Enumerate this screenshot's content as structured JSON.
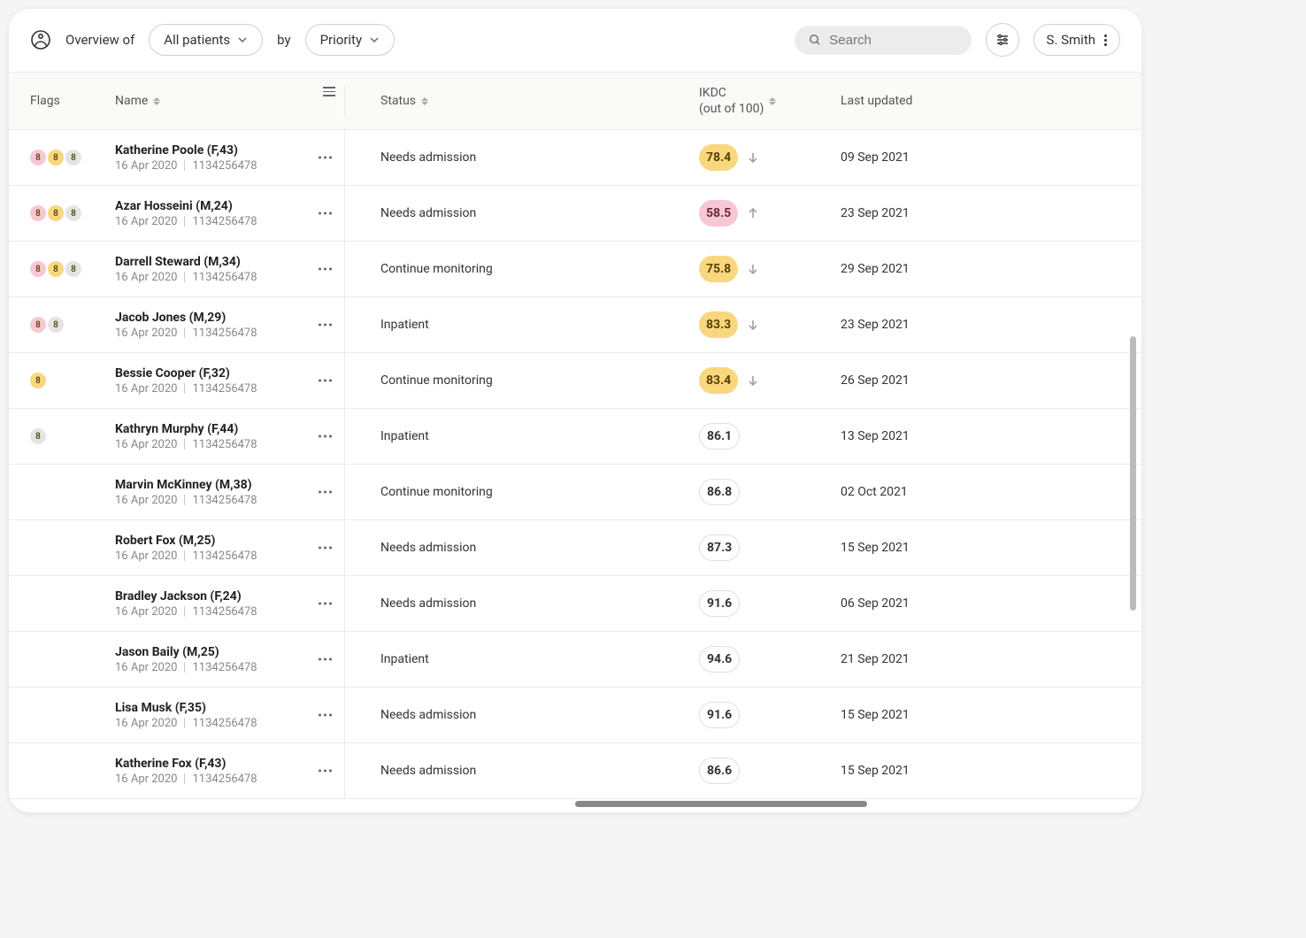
{
  "header": {
    "overview_label": "Overview of",
    "filter_patients": "All patients",
    "by_label": "by",
    "filter_sort": "Priority",
    "search_placeholder": "Search",
    "user_name": "S. Smith"
  },
  "columns": {
    "flags": "Flags",
    "name": "Name",
    "status": "Status",
    "ikdc_line1": "IKDC",
    "ikdc_line2": "(out of 100)",
    "updated": "Last updated"
  },
  "colors": {
    "flag_pink": "#f8c7d4",
    "flag_yellow": "#f9d77e",
    "flag_grey": "#e4e4e4",
    "ikdc_yellow_bg": "#f9d77e",
    "ikdc_pink_bg": "#f8c7d4",
    "ikdc_yellow_text": "#5a4200",
    "ikdc_pink_text": "#6a2a3a"
  },
  "rows": [
    {
      "flags": [
        "pink",
        "yellow",
        "grey"
      ],
      "name": "Katherine Poole (F,43)",
      "date": "16 Apr 2020",
      "id": "1134256478",
      "status": "Needs admission",
      "ikdc": "78.4",
      "ikdc_style": "yellow",
      "trend": "down",
      "updated": "09 Sep 2021"
    },
    {
      "flags": [
        "pink",
        "yellow",
        "grey"
      ],
      "name": "Azar Hosseini (M,24)",
      "date": "16 Apr 2020",
      "id": "1134256478",
      "status": "Needs admission",
      "ikdc": "58.5",
      "ikdc_style": "pink",
      "trend": "up",
      "updated": "23 Sep 2021"
    },
    {
      "flags": [
        "pink",
        "yellow",
        "grey"
      ],
      "name": "Darrell Steward (M,34)",
      "date": "16 Apr 2020",
      "id": "1134256478",
      "status": "Continue monitoring",
      "ikdc": "75.8",
      "ikdc_style": "yellow",
      "trend": "down",
      "updated": "29 Sep 2021"
    },
    {
      "flags": [
        "pink",
        "grey"
      ],
      "name": "Jacob Jones (M,29)",
      "date": "16 Apr 2020",
      "id": "1134256478",
      "status": "Inpatient",
      "ikdc": "83.3",
      "ikdc_style": "yellow",
      "trend": "down",
      "updated": "23 Sep 2021"
    },
    {
      "flags": [
        "yellow"
      ],
      "name": "Bessie Cooper (F,32)",
      "date": "16 Apr 2020",
      "id": "1134256478",
      "status": "Continue monitoring",
      "ikdc": "83.4",
      "ikdc_style": "yellow",
      "trend": "down",
      "updated": "26 Sep 2021"
    },
    {
      "flags": [
        "grey"
      ],
      "name": "Kathryn Murphy (F,44)",
      "date": "16 Apr 2020",
      "id": "1134256478",
      "status": "Inpatient",
      "ikdc": "86.1",
      "ikdc_style": "outline",
      "trend": "",
      "updated": "13 Sep 2021"
    },
    {
      "flags": [],
      "name": "Marvin McKinney (M,38)",
      "date": "16 Apr 2020",
      "id": "1134256478",
      "status": "Continue monitoring",
      "ikdc": "86.8",
      "ikdc_style": "outline",
      "trend": "",
      "updated": "02 Oct 2021"
    },
    {
      "flags": [],
      "name": "Robert Fox (M,25)",
      "date": "16 Apr 2020",
      "id": "1134256478",
      "status": "Needs admission",
      "ikdc": "87.3",
      "ikdc_style": "outline",
      "trend": "",
      "updated": "15 Sep 2021"
    },
    {
      "flags": [],
      "name": "Bradley Jackson (F,24)",
      "date": "16 Apr 2020",
      "id": "1134256478",
      "status": "Needs admission",
      "ikdc": "91.6",
      "ikdc_style": "outline",
      "trend": "",
      "updated": "06 Sep 2021"
    },
    {
      "flags": [],
      "name": "Jason Baily (M,25)",
      "date": "16 Apr 2020",
      "id": "1134256478",
      "status": "Inpatient",
      "ikdc": "94.6",
      "ikdc_style": "outline",
      "trend": "",
      "updated": "21 Sep 2021"
    },
    {
      "flags": [],
      "name": "Lisa Musk (F,35)",
      "date": "16 Apr 2020",
      "id": "1134256478",
      "status": "Needs admission",
      "ikdc": "91.6",
      "ikdc_style": "outline",
      "trend": "",
      "updated": "15 Sep 2021"
    },
    {
      "flags": [],
      "name": "Katherine Fox (F,43)",
      "date": "16 Apr 2020",
      "id": "1134256478",
      "status": "Needs admission",
      "ikdc": "86.6",
      "ikdc_style": "outline",
      "trend": "",
      "updated": "15 Sep 2021"
    }
  ]
}
